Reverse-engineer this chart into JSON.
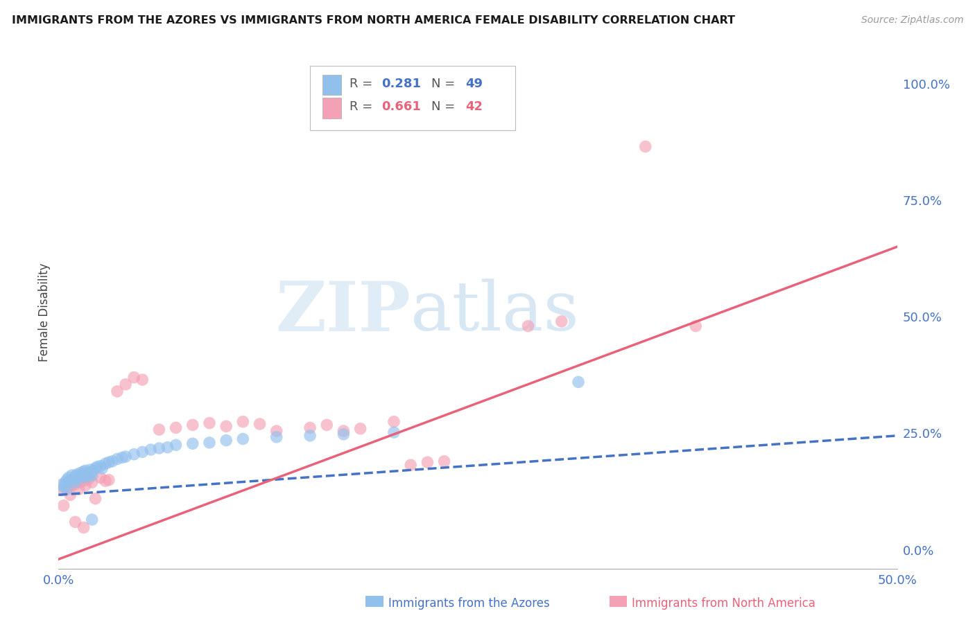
{
  "title": "IMMIGRANTS FROM THE AZORES VS IMMIGRANTS FROM NORTH AMERICA FEMALE DISABILITY CORRELATION CHART",
  "source": "Source: ZipAtlas.com",
  "xlabel_blue": "Immigrants from the Azores",
  "xlabel_pink": "Immigrants from North America",
  "ylabel": "Female Disability",
  "x_min": 0.0,
  "x_max": 0.5,
  "y_min": -0.04,
  "y_max": 1.06,
  "x_ticks": [
    0.0,
    0.1,
    0.2,
    0.3,
    0.4,
    0.5
  ],
  "x_tick_labels": [
    "0.0%",
    "",
    "",
    "",
    "",
    "50.0%"
  ],
  "y_ticks": [
    0.0,
    0.25,
    0.5,
    0.75,
    1.0
  ],
  "y_tick_labels_right": [
    "0.0%",
    "25.0%",
    "50.0%",
    "75.0%",
    "100.0%"
  ],
  "r_blue": 0.281,
  "n_blue": 49,
  "r_pink": 0.661,
  "n_pink": 42,
  "color_blue": "#92c0ed",
  "color_pink": "#f4a0b5",
  "line_color_blue": "#4472c4",
  "line_color_pink": "#e8637a",
  "watermark_color": "#cde8f8",
  "grid_color": "#d0d0d0",
  "background_color": "#ffffff",
  "blue_line_x0": 0.0,
  "blue_line_y0": 0.118,
  "blue_line_x1": 0.5,
  "blue_line_y1": 0.245,
  "pink_line_x0": 0.0,
  "pink_line_y0": -0.02,
  "pink_line_x1": 0.5,
  "pink_line_y1": 0.65,
  "blue_scatter_x": [
    0.002,
    0.003,
    0.004,
    0.005,
    0.005,
    0.006,
    0.007,
    0.008,
    0.009,
    0.01,
    0.01,
    0.011,
    0.012,
    0.013,
    0.014,
    0.015,
    0.015,
    0.016,
    0.017,
    0.018,
    0.019,
    0.02,
    0.02,
    0.022,
    0.023,
    0.025,
    0.026,
    0.028,
    0.03,
    0.032,
    0.035,
    0.038,
    0.04,
    0.045,
    0.05,
    0.055,
    0.06,
    0.065,
    0.07,
    0.08,
    0.09,
    0.1,
    0.11,
    0.13,
    0.15,
    0.17,
    0.2,
    0.02,
    0.31
  ],
  "blue_scatter_y": [
    0.14,
    0.135,
    0.145,
    0.15,
    0.13,
    0.155,
    0.148,
    0.16,
    0.152,
    0.158,
    0.145,
    0.162,
    0.155,
    0.165,
    0.16,
    0.168,
    0.155,
    0.17,
    0.165,
    0.158,
    0.172,
    0.168,
    0.16,
    0.175,
    0.178,
    0.18,
    0.175,
    0.185,
    0.188,
    0.19,
    0.195,
    0.198,
    0.2,
    0.205,
    0.21,
    0.215,
    0.218,
    0.22,
    0.225,
    0.228,
    0.23,
    0.235,
    0.238,
    0.242,
    0.245,
    0.248,
    0.252,
    0.065,
    0.36
  ],
  "pink_scatter_x": [
    0.002,
    0.003,
    0.005,
    0.007,
    0.008,
    0.01,
    0.012,
    0.013,
    0.015,
    0.016,
    0.018,
    0.02,
    0.022,
    0.025,
    0.028,
    0.03,
    0.035,
    0.04,
    0.045,
    0.05,
    0.06,
    0.07,
    0.08,
    0.09,
    0.1,
    0.11,
    0.12,
    0.13,
    0.15,
    0.16,
    0.17,
    0.18,
    0.2,
    0.21,
    0.22,
    0.23,
    0.28,
    0.3,
    0.35,
    0.38,
    0.01,
    0.015
  ],
  "pink_scatter_y": [
    0.128,
    0.095,
    0.132,
    0.118,
    0.138,
    0.142,
    0.13,
    0.145,
    0.148,
    0.138,
    0.152,
    0.145,
    0.11,
    0.155,
    0.148,
    0.15,
    0.34,
    0.355,
    0.37,
    0.365,
    0.258,
    0.262,
    0.268,
    0.272,
    0.265,
    0.275,
    0.27,
    0.255,
    0.262,
    0.268,
    0.255,
    0.26,
    0.275,
    0.182,
    0.188,
    0.19,
    0.48,
    0.49,
    0.865,
    0.48,
    0.06,
    0.048
  ]
}
